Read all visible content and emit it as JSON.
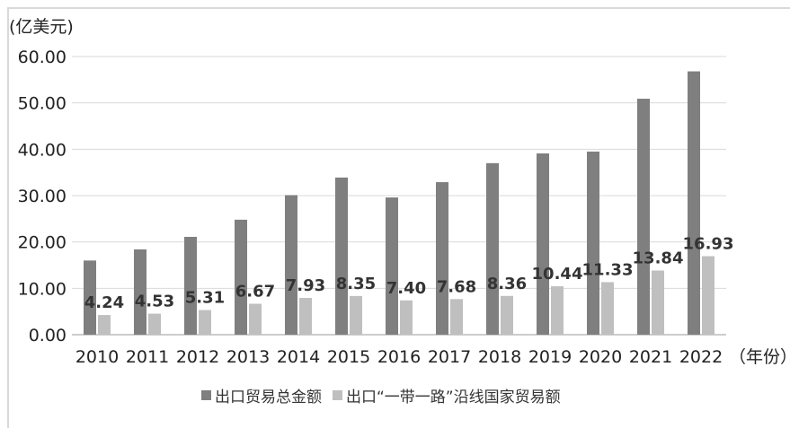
{
  "chart_data": {
    "type": "bar",
    "unit_label": "(亿美元)",
    "x_unit_label": "（年份）",
    "categories": [
      "2010",
      "2011",
      "2012",
      "2013",
      "2014",
      "2015",
      "2016",
      "2017",
      "2018",
      "2019",
      "2020",
      "2021",
      "2022"
    ],
    "y_ticks": [
      "0.00",
      "10.00",
      "20.00",
      "30.00",
      "40.00",
      "50.00",
      "60.00"
    ],
    "ylim": [
      0,
      60
    ],
    "grid": true,
    "legend_position": "bottom-center",
    "series": [
      {
        "name": "出口贸易总金额",
        "color": "#7f7f7f",
        "values": [
          16.0,
          18.4,
          21.1,
          24.8,
          30.1,
          33.9,
          29.6,
          32.9,
          37.0,
          39.1,
          39.5,
          50.9,
          56.8
        ],
        "show_labels": false
      },
      {
        "name": "出口“一带一路”沿线国家贸易额",
        "color": "#bfbfbf",
        "values": [
          4.24,
          4.53,
          5.31,
          6.67,
          7.93,
          8.35,
          7.4,
          7.68,
          8.36,
          10.44,
          11.33,
          13.84,
          16.93
        ],
        "data_labels": [
          "4.24",
          "4.53",
          "5.31",
          "6.67",
          "7.93",
          "8.35",
          "7.40",
          "7.68",
          "8.36",
          "10.44",
          "11.33",
          "13.84",
          "16.93"
        ],
        "show_labels": true
      }
    ]
  }
}
